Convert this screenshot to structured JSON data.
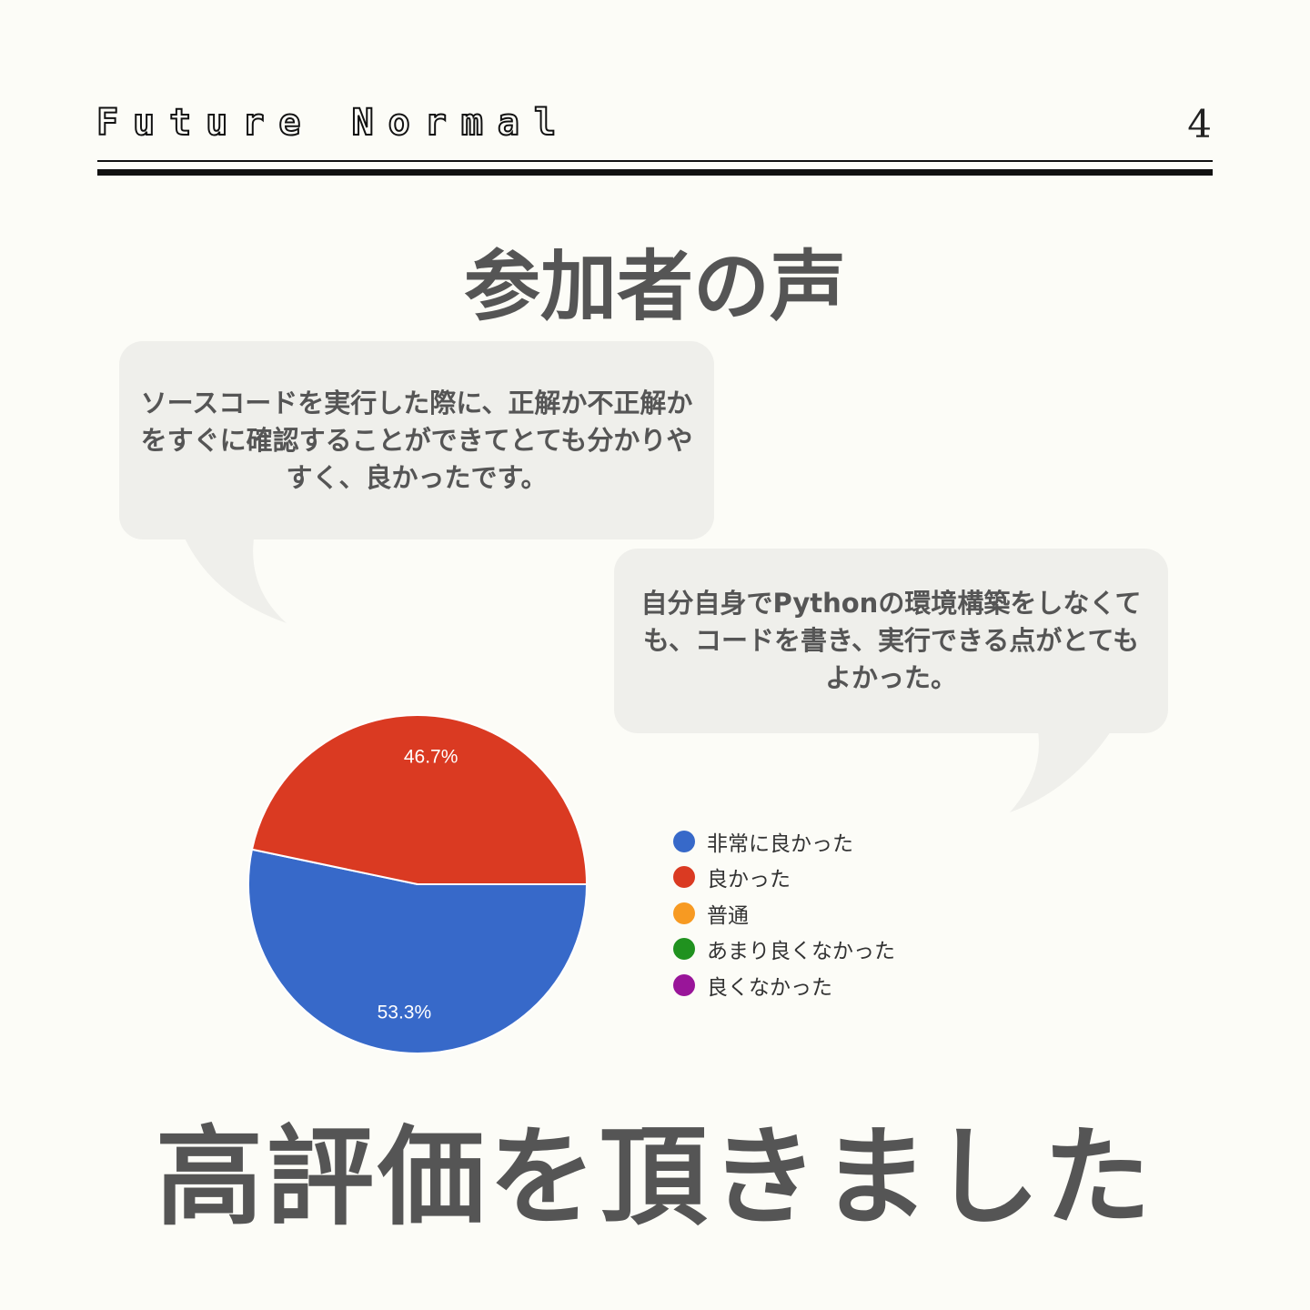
{
  "header": {
    "brand": "Future Normal",
    "page_number": "4"
  },
  "title": "参加者の声",
  "comments": [
    {
      "text": "ソースコードを実行した際に、正解か不正解かをすぐに確認することができてとても分かりやすく、良かったです。"
    },
    {
      "text": "自分自身でPythonの環境構築をしなくても、コードを書き、実行できる点がとてもよかった。"
    }
  ],
  "chart_data": {
    "type": "pie",
    "slices": [
      {
        "label": "非常に良かった",
        "value": 53.3,
        "display": "53.3%",
        "color": "#3769c9"
      },
      {
        "label": "良かった",
        "value": 46.7,
        "display": "46.7%",
        "color": "#da3a22"
      },
      {
        "label": "普通",
        "value": 0,
        "display": "",
        "color": "#f79a22"
      },
      {
        "label": "あまり良くなかった",
        "value": 0,
        "display": "",
        "color": "#20921f"
      },
      {
        "label": "良くなかった",
        "value": 0,
        "display": "",
        "color": "#991599"
      }
    ],
    "legend_position": "right"
  },
  "footer": "高評価を頂きました"
}
